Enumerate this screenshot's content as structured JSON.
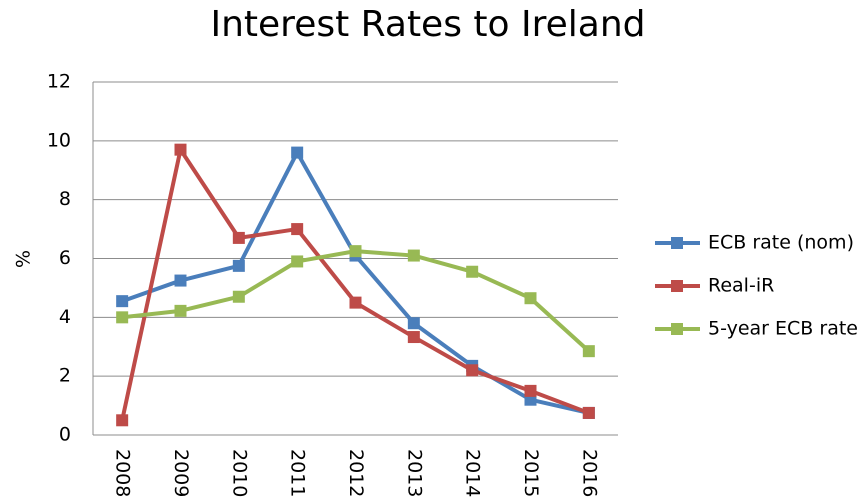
{
  "chart_data": {
    "type": "line",
    "title": "Interest Rates to Ireland",
    "y_label": "%",
    "categories": [
      "2008",
      "2009",
      "2010",
      "2011",
      "2012",
      "2013",
      "2014",
      "2015",
      "2016"
    ],
    "series": [
      {
        "name": "ECB rate (nom)",
        "color": "#4a7ebb",
        "values": [
          4.55,
          5.25,
          5.75,
          9.6,
          6.1,
          3.8,
          2.35,
          1.2,
          0.75
        ]
      },
      {
        "name": "Real-iR",
        "color": "#be4b48",
        "values": [
          0.5,
          9.7,
          6.7,
          7.0,
          4.5,
          3.33,
          2.2,
          1.5,
          0.75
        ]
      },
      {
        "name": "5-year ECB rate",
        "color": "#98b954",
        "values": [
          4.0,
          4.22,
          4.7,
          5.9,
          6.25,
          6.1,
          5.55,
          4.65,
          2.85
        ]
      }
    ],
    "ylim": [
      0,
      12
    ],
    "yticks": [
      0,
      2,
      4,
      6,
      8,
      10,
      12
    ],
    "grid": true,
    "legend": "right"
  }
}
